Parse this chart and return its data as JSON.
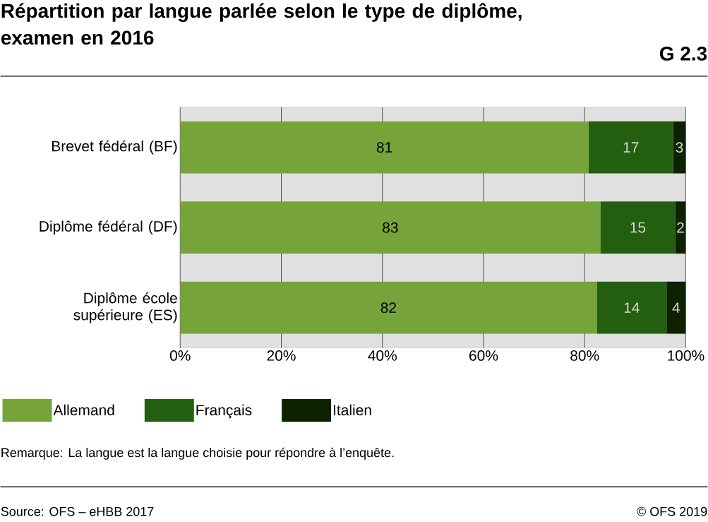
{
  "chart_data": {
    "type": "bar",
    "orientation": "horizontal",
    "stacked": true,
    "title": "Répartition par langue parlée selon le type de diplôme, examen en 2016",
    "categories": [
      "Brevet fédéral (BF)",
      "Diplôme fédéral (DF)",
      "Diplôme école supérieure (ES)"
    ],
    "series": [
      {
        "name": "Allemand",
        "color": "#76a43a",
        "values": [
          80.8,
          83.1,
          82.4
        ],
        "value_labels": [
          "81",
          "83",
          "82"
        ]
      },
      {
        "name": "Français",
        "color": "#245f0f",
        "values": [
          16.7,
          14.8,
          13.8
        ],
        "value_labels": [
          "17",
          "15",
          "14"
        ]
      },
      {
        "name": "Italien",
        "color": "#0c2200",
        "values": [
          2.5,
          2.1,
          3.8
        ],
        "value_labels": [
          "3",
          "2",
          "4"
        ]
      }
    ],
    "xlim": [
      0,
      100
    ],
    "xticks": [
      {
        "value": 0,
        "label": "0%"
      },
      {
        "value": 20,
        "label": "20%"
      },
      {
        "value": 40,
        "label": "40%"
      },
      {
        "value": 60,
        "label": "60%"
      },
      {
        "value": 80,
        "label": "80%"
      },
      {
        "value": 100,
        "label": "100%"
      }
    ],
    "grid": "x",
    "legend": "bottom",
    "annotations": [
      "G 2.3",
      "Remarque: La langue est la langue choisie pour répondre à l’enquête.",
      "Source: OFS – eHBB 2017",
      "© OFS 2019"
    ]
  }
}
